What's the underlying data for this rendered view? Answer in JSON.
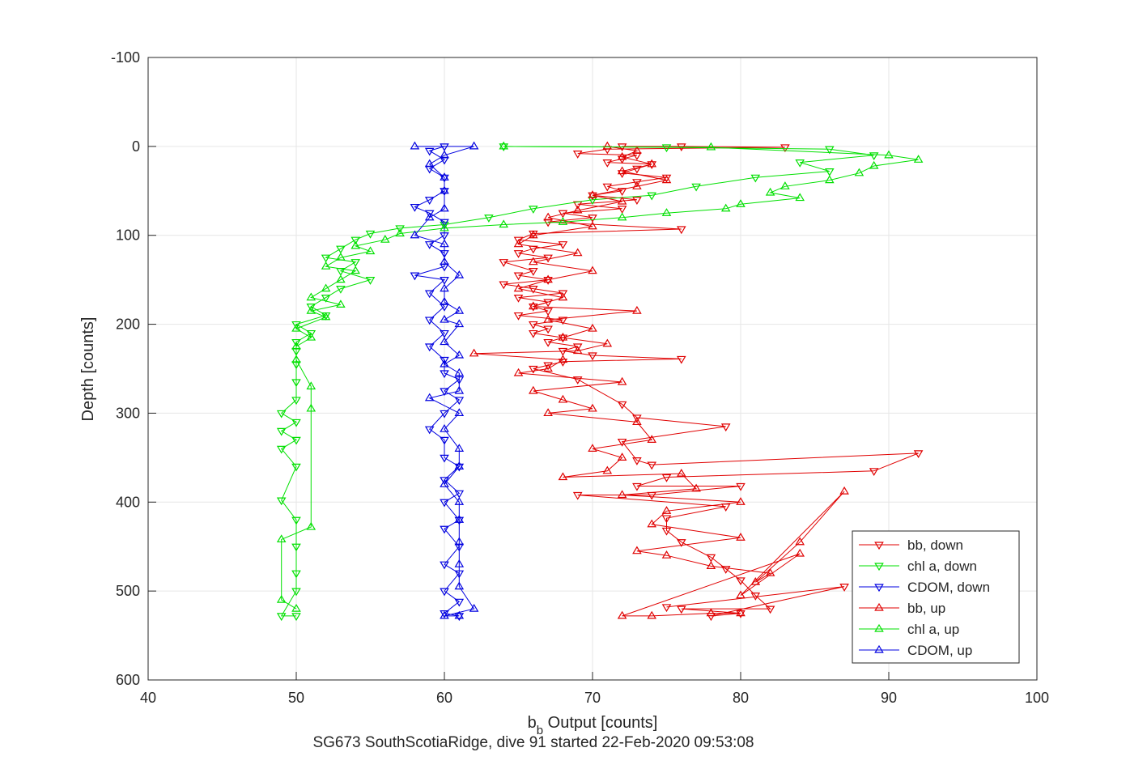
{
  "chart_data": {
    "type": "scatter",
    "xlabel": "b_b Output [counts]",
    "xlabel_main": "b",
    "xlabel_sub": "b",
    "xlabel_rest": " Output [counts]",
    "ylabel": "Depth [counts]",
    "caption": "SG673 SouthScotiaRidge, dive 91 started 22-Feb-2020 09:53:08",
    "xlim": [
      40,
      100
    ],
    "ylim": [
      -100,
      600
    ],
    "y_reversed": true,
    "grid": true,
    "legend_placement": "bottom-right",
    "xticks": [
      "40",
      "50",
      "60",
      "70",
      "80",
      "90",
      "100"
    ],
    "yticks": [
      "-100",
      "0",
      "100",
      "200",
      "300",
      "400",
      "500",
      "600"
    ],
    "series": [
      {
        "name": "bb, down",
        "color": "#e00000",
        "marker": "triangle-down",
        "connected": true,
        "points": [
          [
            72,
            0
          ],
          [
            76,
            0
          ],
          [
            83,
            1
          ],
          [
            71,
            3
          ],
          [
            69,
            8
          ],
          [
            73,
            10
          ],
          [
            72,
            14
          ],
          [
            71,
            18
          ],
          [
            74,
            20
          ],
          [
            73,
            25
          ],
          [
            72,
            30
          ],
          [
            75,
            35
          ],
          [
            73,
            40
          ],
          [
            71,
            45
          ],
          [
            72,
            50
          ],
          [
            70,
            55
          ],
          [
            73,
            60
          ],
          [
            69,
            65
          ],
          [
            72,
            70
          ],
          [
            68,
            75
          ],
          [
            70,
            80
          ],
          [
            67,
            85
          ],
          [
            76,
            93
          ],
          [
            66,
            98
          ],
          [
            65,
            105
          ],
          [
            68,
            110
          ],
          [
            66,
            115
          ],
          [
            65,
            120
          ],
          [
            67,
            125
          ],
          [
            64,
            130
          ],
          [
            66,
            140
          ],
          [
            65,
            145
          ],
          [
            67,
            150
          ],
          [
            64,
            155
          ],
          [
            66,
            160
          ],
          [
            68,
            165
          ],
          [
            65,
            170
          ],
          [
            67,
            175
          ],
          [
            66,
            180
          ],
          [
            67,
            185
          ],
          [
            65,
            190
          ],
          [
            68,
            195
          ],
          [
            66,
            200
          ],
          [
            67,
            205
          ],
          [
            66,
            210
          ],
          [
            68,
            215
          ],
          [
            67,
            220
          ],
          [
            69,
            225
          ],
          [
            68,
            230
          ],
          [
            70,
            235
          ],
          [
            76,
            239
          ],
          [
            68,
            242
          ],
          [
            67,
            246
          ],
          [
            66,
            250
          ],
          [
            69,
            262
          ],
          [
            72,
            290
          ],
          [
            73,
            305
          ],
          [
            79,
            315
          ],
          [
            72,
            332
          ],
          [
            73,
            353
          ],
          [
            74,
            358
          ],
          [
            92,
            345
          ],
          [
            89,
            365
          ],
          [
            75,
            372
          ],
          [
            73,
            382
          ],
          [
            80,
            382
          ],
          [
            74,
            392
          ],
          [
            69,
            392
          ],
          [
            79,
            405
          ],
          [
            75,
            418
          ],
          [
            75,
            432
          ],
          [
            76,
            445
          ],
          [
            78,
            462
          ],
          [
            79,
            475
          ],
          [
            80,
            488
          ],
          [
            81,
            505
          ],
          [
            82,
            520
          ],
          [
            76,
            520
          ],
          [
            80,
            525
          ],
          [
            78,
            528
          ],
          [
            87,
            495
          ],
          [
            75,
            518
          ]
        ]
      },
      {
        "name": "chl a, down",
        "color": "#00e000",
        "marker": "triangle-down",
        "connected": true,
        "points": [
          [
            64,
            0
          ],
          [
            75,
            1
          ],
          [
            86,
            3
          ],
          [
            89,
            10
          ],
          [
            84,
            18
          ],
          [
            86,
            28
          ],
          [
            81,
            35
          ],
          [
            77,
            45
          ],
          [
            74,
            55
          ],
          [
            70,
            60
          ],
          [
            66,
            70
          ],
          [
            63,
            80
          ],
          [
            60,
            88
          ],
          [
            57,
            92
          ],
          [
            55,
            98
          ],
          [
            54,
            105
          ],
          [
            53,
            115
          ],
          [
            52,
            125
          ],
          [
            54,
            130
          ],
          [
            53,
            140
          ],
          [
            55,
            150
          ],
          [
            53,
            160
          ],
          [
            52,
            170
          ],
          [
            51,
            180
          ],
          [
            52,
            190
          ],
          [
            50,
            200
          ],
          [
            51,
            210
          ],
          [
            50,
            220
          ],
          [
            50,
            230
          ],
          [
            50,
            245
          ],
          [
            50,
            265
          ],
          [
            50,
            285
          ],
          [
            49,
            300
          ],
          [
            50,
            310
          ],
          [
            49,
            320
          ],
          [
            50,
            330
          ],
          [
            49,
            340
          ],
          [
            50,
            360
          ],
          [
            49,
            398
          ],
          [
            50,
            420
          ],
          [
            50,
            450
          ],
          [
            50,
            480
          ],
          [
            50,
            500
          ],
          [
            49,
            528
          ],
          [
            50,
            528
          ]
        ]
      },
      {
        "name": "CDOM, down",
        "color": "#0000e0",
        "marker": "triangle-down",
        "connected": true,
        "points": [
          [
            60,
            0
          ],
          [
            59,
            5
          ],
          [
            60,
            15
          ],
          [
            59,
            25
          ],
          [
            60,
            35
          ],
          [
            60,
            50
          ],
          [
            59,
            60
          ],
          [
            58,
            68
          ],
          [
            59,
            75
          ],
          [
            60,
            85
          ],
          [
            60,
            100
          ],
          [
            59,
            110
          ],
          [
            60,
            120
          ],
          [
            60,
            135
          ],
          [
            58,
            145
          ],
          [
            60,
            150
          ],
          [
            59,
            165
          ],
          [
            60,
            180
          ],
          [
            59,
            195
          ],
          [
            60,
            210
          ],
          [
            59,
            225
          ],
          [
            60,
            240
          ],
          [
            60,
            255
          ],
          [
            61,
            262
          ],
          [
            60,
            275
          ],
          [
            61,
            285
          ],
          [
            60,
            300
          ],
          [
            59,
            318
          ],
          [
            60,
            330
          ],
          [
            60,
            350
          ],
          [
            61,
            360
          ],
          [
            60,
            375
          ],
          [
            61,
            390
          ],
          [
            60,
            400
          ],
          [
            61,
            420
          ],
          [
            60,
            430
          ],
          [
            61,
            450
          ],
          [
            60,
            470
          ],
          [
            61,
            480
          ],
          [
            60,
            500
          ],
          [
            61,
            512
          ],
          [
            60,
            525
          ],
          [
            61,
            528
          ]
        ]
      },
      {
        "name": "bb, up",
        "color": "#e00000",
        "marker": "triangle-up",
        "connected": true,
        "points": [
          [
            71,
            0
          ],
          [
            73,
            5
          ],
          [
            72,
            12
          ],
          [
            74,
            20
          ],
          [
            72,
            28
          ],
          [
            75,
            38
          ],
          [
            73,
            45
          ],
          [
            70,
            55
          ],
          [
            72,
            62
          ],
          [
            69,
            72
          ],
          [
            67,
            80
          ],
          [
            70,
            90
          ],
          [
            66,
            100
          ],
          [
            65,
            110
          ],
          [
            69,
            120
          ],
          [
            66,
            130
          ],
          [
            70,
            140
          ],
          [
            67,
            150
          ],
          [
            65,
            160
          ],
          [
            68,
            170
          ],
          [
            66,
            180
          ],
          [
            73,
            185
          ],
          [
            67,
            195
          ],
          [
            70,
            205
          ],
          [
            68,
            215
          ],
          [
            71,
            222
          ],
          [
            69,
            230
          ],
          [
            62,
            233
          ],
          [
            68,
            240
          ],
          [
            67,
            250
          ],
          [
            65,
            255
          ],
          [
            72,
            265
          ],
          [
            66,
            275
          ],
          [
            68,
            285
          ],
          [
            70,
            295
          ],
          [
            67,
            300
          ],
          [
            73,
            310
          ],
          [
            74,
            330
          ],
          [
            70,
            340
          ],
          [
            72,
            350
          ],
          [
            71,
            365
          ],
          [
            68,
            372
          ],
          [
            76,
            368
          ],
          [
            77,
            385
          ],
          [
            72,
            392
          ],
          [
            80,
            400
          ],
          [
            75,
            410
          ],
          [
            74,
            425
          ],
          [
            80,
            440
          ],
          [
            73,
            455
          ],
          [
            75,
            460
          ],
          [
            78,
            472
          ],
          [
            82,
            480
          ],
          [
            81,
            490
          ],
          [
            84,
            445
          ],
          [
            87,
            388
          ],
          [
            80,
            505
          ],
          [
            84,
            458
          ],
          [
            72,
            528
          ],
          [
            74,
            528
          ],
          [
            78,
            525
          ],
          [
            80,
            525
          ]
        ]
      },
      {
        "name": "chl a, up",
        "color": "#00e000",
        "marker": "triangle-up",
        "connected": true,
        "points": [
          [
            64,
            0
          ],
          [
            78,
            1
          ],
          [
            90,
            10
          ],
          [
            92,
            15
          ],
          [
            89,
            22
          ],
          [
            88,
            30
          ],
          [
            86,
            38
          ],
          [
            83,
            45
          ],
          [
            82,
            52
          ],
          [
            84,
            58
          ],
          [
            80,
            65
          ],
          [
            79,
            70
          ],
          [
            75,
            75
          ],
          [
            72,
            80
          ],
          [
            68,
            85
          ],
          [
            64,
            88
          ],
          [
            60,
            92
          ],
          [
            57,
            98
          ],
          [
            56,
            105
          ],
          [
            54,
            112
          ],
          [
            55,
            118
          ],
          [
            53,
            125
          ],
          [
            52,
            135
          ],
          [
            54,
            140
          ],
          [
            53,
            150
          ],
          [
            52,
            160
          ],
          [
            51,
            170
          ],
          [
            53,
            178
          ],
          [
            51,
            185
          ],
          [
            52,
            192
          ],
          [
            50,
            205
          ],
          [
            51,
            215
          ],
          [
            50,
            225
          ],
          [
            50,
            240
          ],
          [
            51,
            270
          ],
          [
            51,
            295
          ],
          [
            51,
            428
          ],
          [
            49,
            442
          ],
          [
            49,
            510
          ],
          [
            50,
            520
          ]
        ]
      },
      {
        "name": "CDOM, up",
        "color": "#0000e0",
        "marker": "triangle-up",
        "connected": true,
        "points": [
          [
            58,
            0
          ],
          [
            62,
            0
          ],
          [
            60,
            10
          ],
          [
            59,
            20
          ],
          [
            60,
            35
          ],
          [
            60,
            50
          ],
          [
            60,
            70
          ],
          [
            59,
            80
          ],
          [
            58,
            100
          ],
          [
            60,
            110
          ],
          [
            60,
            130
          ],
          [
            61,
            145
          ],
          [
            60,
            160
          ],
          [
            60,
            175
          ],
          [
            61,
            185
          ],
          [
            60,
            195
          ],
          [
            61,
            200
          ],
          [
            60,
            220
          ],
          [
            61,
            235
          ],
          [
            60,
            245
          ],
          [
            61,
            255
          ],
          [
            61,
            275
          ],
          [
            59,
            283
          ],
          [
            61,
            300
          ],
          [
            60,
            318
          ],
          [
            61,
            340
          ],
          [
            61,
            360
          ],
          [
            60,
            380
          ],
          [
            61,
            400
          ],
          [
            61,
            420
          ],
          [
            61,
            445
          ],
          [
            61,
            470
          ],
          [
            61,
            495
          ],
          [
            62,
            520
          ],
          [
            60,
            528
          ],
          [
            61,
            528
          ]
        ]
      }
    ]
  }
}
